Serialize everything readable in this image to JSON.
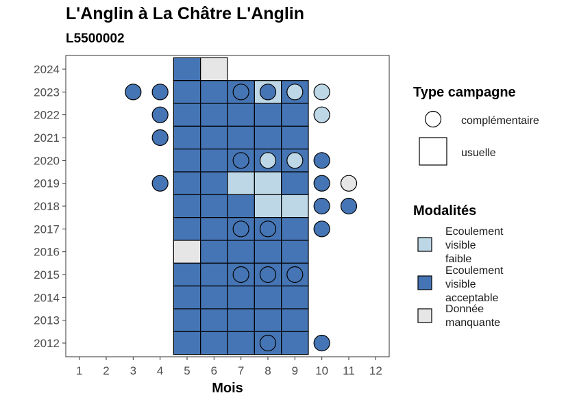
{
  "title": "L'Anglin à La Châtre L'Anglin",
  "subtitle": "L5500002",
  "chart_data": {
    "type": "heatmap",
    "title": "L'Anglin à La Châtre L'Anglin",
    "subtitle": "L5500002",
    "xlabel": "Mois",
    "ylabel": "",
    "x_ticks": [
      1,
      2,
      3,
      4,
      5,
      6,
      7,
      8,
      9,
      10,
      11,
      12
    ],
    "y_ticks": [
      2012,
      2013,
      2014,
      2015,
      2016,
      2017,
      2018,
      2019,
      2020,
      2021,
      2022,
      2023,
      2024
    ],
    "xlim": [
      0.5,
      12.5
    ],
    "ylim": [
      2011.4,
      2024.6
    ],
    "grid": false,
    "colors": {
      "faible": "#bdd7e7",
      "acceptable": "#4575b4",
      "manquante": "#e6e6e6"
    },
    "legend_type": {
      "title": "Type campagne",
      "items": [
        {
          "key": "complementaire",
          "label": "complémentaire",
          "shape": "circle"
        },
        {
          "key": "usuelle",
          "label": "usuelle",
          "shape": "square"
        }
      ]
    },
    "legend_modalites": {
      "title": "Modalités",
      "items": [
        {
          "key": "faible",
          "lines": [
            "Ecoulement",
            "visible",
            "faible"
          ]
        },
        {
          "key": "acceptable",
          "lines": [
            "Ecoulement",
            "visible",
            "acceptable"
          ]
        },
        {
          "key": "manquante",
          "lines": [
            "Donnée",
            "manquante"
          ]
        }
      ]
    },
    "usuelle": [
      {
        "year": 2024,
        "months": {
          "5": "acceptable",
          "6": "manquante"
        }
      },
      {
        "year": 2023,
        "months": {
          "5": "acceptable",
          "6": "acceptable",
          "7": "acceptable",
          "8": "faible",
          "9": "acceptable"
        }
      },
      {
        "year": 2022,
        "months": {
          "5": "acceptable",
          "6": "acceptable",
          "7": "acceptable",
          "8": "acceptable",
          "9": "acceptable"
        }
      },
      {
        "year": 2021,
        "months": {
          "5": "acceptable",
          "6": "acceptable",
          "7": "acceptable",
          "8": "acceptable",
          "9": "acceptable"
        }
      },
      {
        "year": 2020,
        "months": {
          "5": "acceptable",
          "6": "acceptable",
          "7": "acceptable",
          "8": "acceptable",
          "9": "acceptable"
        }
      },
      {
        "year": 2019,
        "months": {
          "5": "acceptable",
          "6": "acceptable",
          "7": "faible",
          "8": "faible",
          "9": "acceptable"
        }
      },
      {
        "year": 2018,
        "months": {
          "5": "acceptable",
          "6": "acceptable",
          "7": "acceptable",
          "8": "faible",
          "9": "faible"
        }
      },
      {
        "year": 2017,
        "months": {
          "5": "acceptable",
          "6": "acceptable",
          "7": "acceptable",
          "8": "acceptable",
          "9": "acceptable"
        }
      },
      {
        "year": 2016,
        "months": {
          "5": "manquante",
          "6": "acceptable",
          "7": "acceptable",
          "8": "acceptable",
          "9": "acceptable"
        }
      },
      {
        "year": 2015,
        "months": {
          "5": "acceptable",
          "6": "acceptable",
          "7": "acceptable",
          "8": "acceptable",
          "9": "acceptable"
        }
      },
      {
        "year": 2014,
        "months": {
          "5": "acceptable",
          "6": "acceptable",
          "7": "acceptable",
          "8": "acceptable",
          "9": "acceptable"
        }
      },
      {
        "year": 2013,
        "months": {
          "5": "acceptable",
          "6": "acceptable",
          "7": "acceptable",
          "8": "acceptable",
          "9": "acceptable"
        }
      },
      {
        "year": 2012,
        "months": {
          "5": "acceptable",
          "6": "acceptable",
          "7": "acceptable",
          "8": "acceptable",
          "9": "acceptable"
        }
      }
    ],
    "complementaire": [
      {
        "year": 2023,
        "month": 3,
        "value": "acceptable"
      },
      {
        "year": 2023,
        "month": 4,
        "value": "acceptable"
      },
      {
        "year": 2023,
        "month": 7,
        "value": "acceptable"
      },
      {
        "year": 2023,
        "month": 8,
        "value": "acceptable"
      },
      {
        "year": 2023,
        "month": 9,
        "value": "faible"
      },
      {
        "year": 2023,
        "month": 10,
        "value": "faible"
      },
      {
        "year": 2022,
        "month": 4,
        "value": "acceptable"
      },
      {
        "year": 2022,
        "month": 10,
        "value": "faible"
      },
      {
        "year": 2021,
        "month": 4,
        "value": "acceptable"
      },
      {
        "year": 2020,
        "month": 7,
        "value": "acceptable"
      },
      {
        "year": 2020,
        "month": 8,
        "value": "faible"
      },
      {
        "year": 2020,
        "month": 9,
        "value": "faible"
      },
      {
        "year": 2020,
        "month": 10,
        "value": "acceptable"
      },
      {
        "year": 2019,
        "month": 4,
        "value": "acceptable"
      },
      {
        "year": 2019,
        "month": 10,
        "value": "acceptable"
      },
      {
        "year": 2019,
        "month": 11,
        "value": "manquante"
      },
      {
        "year": 2018,
        "month": 10,
        "value": "acceptable"
      },
      {
        "year": 2018,
        "month": 11,
        "value": "acceptable"
      },
      {
        "year": 2017,
        "month": 7,
        "value": "acceptable"
      },
      {
        "year": 2017,
        "month": 8,
        "value": "acceptable"
      },
      {
        "year": 2017,
        "month": 10,
        "value": "acceptable"
      },
      {
        "year": 2015,
        "month": 7,
        "value": "acceptable"
      },
      {
        "year": 2015,
        "month": 8,
        "value": "acceptable"
      },
      {
        "year": 2015,
        "month": 9,
        "value": "acceptable"
      },
      {
        "year": 2012,
        "month": 8,
        "value": "acceptable"
      },
      {
        "year": 2012,
        "month": 10,
        "value": "acceptable"
      }
    ]
  }
}
